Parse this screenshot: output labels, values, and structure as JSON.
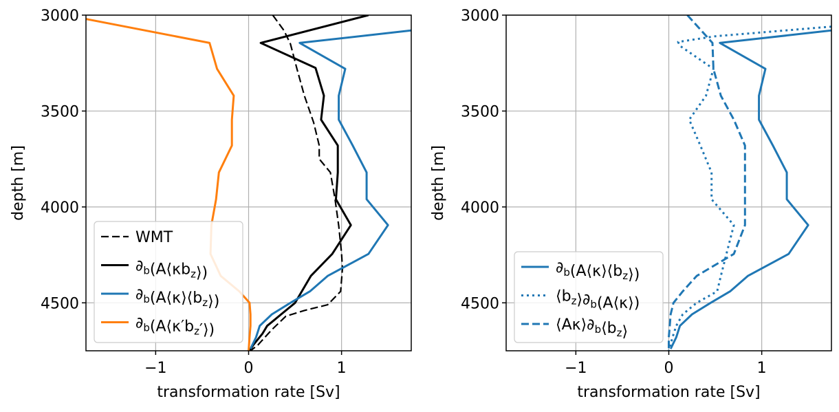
{
  "chart_data": [
    {
      "type": "line",
      "title": "",
      "xlabel": "transformation rate [Sv]",
      "ylabel": "depth [m]",
      "xlim": [
        -1.75,
        1.75
      ],
      "ylim": [
        4750,
        3000
      ],
      "y_inverted": true,
      "xticks": [
        -1,
        0,
        1
      ],
      "xtick_labels": [
        "−1",
        "0",
        "1"
      ],
      "yticks": [
        3000,
        3500,
        4000,
        4500
      ],
      "ytick_labels": [
        "3000",
        "3500",
        "4000",
        "4500"
      ],
      "grid": true,
      "legend_position": "lower-left",
      "series": [
        {
          "name": "WMT",
          "color": "#000000",
          "dash": "dashed",
          "points": [
            [
              0.26,
              3000
            ],
            [
              0.38,
              3080
            ],
            [
              0.45,
              3150
            ],
            [
              0.52,
              3280
            ],
            [
              0.6,
              3420
            ],
            [
              0.7,
              3560
            ],
            [
              0.76,
              3680
            ],
            [
              0.76,
              3750
            ],
            [
              0.88,
              3820
            ],
            [
              0.93,
              3960
            ],
            [
              0.97,
              4100
            ],
            [
              1.0,
              4240
            ],
            [
              1.01,
              4320
            ],
            [
              0.99,
              4440
            ],
            [
              0.85,
              4510
            ],
            [
              0.6,
              4540
            ],
            [
              0.4,
              4570
            ],
            [
              0.25,
              4640
            ],
            [
              0.1,
              4720
            ],
            [
              0.02,
              4750
            ]
          ]
        },
        {
          "name": "∂b(A⟨κbz⟩)",
          "color": "#000000",
          "dash": "solid",
          "points": [
            [
              1.29,
              3000
            ],
            [
              0.13,
              3145
            ],
            [
              0.72,
              3275
            ],
            [
              0.81,
              3420
            ],
            [
              0.78,
              3545
            ],
            [
              0.96,
              3680
            ],
            [
              0.96,
              3820
            ],
            [
              0.94,
              3960
            ],
            [
              1.1,
              4095
            ],
            [
              0.9,
              4245
            ],
            [
              0.67,
              4360
            ],
            [
              0.5,
              4500
            ],
            [
              0.35,
              4560
            ],
            [
              0.25,
              4600
            ],
            [
              0.2,
              4620
            ],
            [
              0.15,
              4660
            ],
            [
              0.05,
              4720
            ],
            [
              0.01,
              4750
            ]
          ]
        },
        {
          "name": "∂b(A⟨κ⟩⟨bz⟩)",
          "color": "#1f77b4",
          "dash": "solid",
          "points": [
            [
              1.75,
              3080
            ],
            [
              0.55,
              3145
            ],
            [
              1.04,
              3280
            ],
            [
              0.97,
              3420
            ],
            [
              0.97,
              3545
            ],
            [
              1.12,
              3680
            ],
            [
              1.27,
              3820
            ],
            [
              1.27,
              3960
            ],
            [
              1.5,
              4095
            ],
            [
              1.29,
              4245
            ],
            [
              0.85,
              4360
            ],
            [
              0.66,
              4440
            ],
            [
              0.45,
              4500
            ],
            [
              0.25,
              4560
            ],
            [
              0.12,
              4620
            ],
            [
              0.08,
              4680
            ],
            [
              0.02,
              4740
            ]
          ]
        },
        {
          "name": "∂b(A⟨κ′bz′⟩)",
          "color": "#ff7f0e",
          "dash": "solid",
          "points": [
            [
              -1.75,
              3020
            ],
            [
              -0.42,
              3145
            ],
            [
              -0.34,
              3280
            ],
            [
              -0.16,
              3420
            ],
            [
              -0.18,
              3545
            ],
            [
              -0.18,
              3680
            ],
            [
              -0.32,
              3820
            ],
            [
              -0.35,
              3960
            ],
            [
              -0.4,
              4095
            ],
            [
              -0.41,
              4245
            ],
            [
              -0.3,
              4360
            ],
            [
              -0.1,
              4440
            ],
            [
              0.01,
              4500
            ],
            [
              0.02,
              4560
            ],
            [
              0.02,
              4620
            ],
            [
              0.01,
              4680
            ],
            [
              0.0,
              4750
            ]
          ]
        }
      ],
      "legend": [
        {
          "color": "#000000",
          "dash": "dashed",
          "parts": [
            {
              "t": "WMT"
            }
          ]
        },
        {
          "color": "#000000",
          "dash": "solid",
          "parts": [
            {
              "t": "∂"
            },
            {
              "t": "b",
              "sub": true
            },
            {
              "t": "(A⟨κb"
            },
            {
              "t": "z",
              "sub": true
            },
            {
              "t": "⟩)"
            }
          ]
        },
        {
          "color": "#1f77b4",
          "dash": "solid",
          "parts": [
            {
              "t": "∂"
            },
            {
              "t": "b",
              "sub": true
            },
            {
              "t": "(A⟨κ⟩⟨b"
            },
            {
              "t": "z",
              "sub": true
            },
            {
              "t": "⟩)"
            }
          ]
        },
        {
          "color": "#ff7f0e",
          "dash": "solid",
          "parts": [
            {
              "t": "∂"
            },
            {
              "t": "b",
              "sub": true
            },
            {
              "t": "(A⟨κ′b"
            },
            {
              "t": "z",
              "sub": true
            },
            {
              "t": "′⟩)"
            }
          ]
        }
      ]
    },
    {
      "type": "line",
      "title": "",
      "xlabel": "transformation rate [Sv]",
      "ylabel": "depth [m]",
      "xlim": [
        -1.75,
        1.75
      ],
      "ylim": [
        4750,
        3000
      ],
      "y_inverted": true,
      "xticks": [
        -1,
        0,
        1
      ],
      "xtick_labels": [
        "−1",
        "0",
        "1"
      ],
      "yticks": [
        3000,
        3500,
        4000,
        4500
      ],
      "ytick_labels": [
        "3000",
        "3500",
        "4000",
        "4500"
      ],
      "grid": true,
      "legend_position": "lower-left",
      "series": [
        {
          "name": "∂b(A⟨κ⟩⟨bz⟩)",
          "color": "#1f77b4",
          "dash": "solid",
          "points": [
            [
              1.75,
              3080
            ],
            [
              0.55,
              3145
            ],
            [
              1.04,
              3280
            ],
            [
              0.97,
              3420
            ],
            [
              0.97,
              3545
            ],
            [
              1.12,
              3680
            ],
            [
              1.27,
              3820
            ],
            [
              1.27,
              3960
            ],
            [
              1.5,
              4095
            ],
            [
              1.29,
              4245
            ],
            [
              0.85,
              4360
            ],
            [
              0.66,
              4440
            ],
            [
              0.45,
              4500
            ],
            [
              0.25,
              4560
            ],
            [
              0.12,
              4620
            ],
            [
              0.08,
              4680
            ],
            [
              0.02,
              4740
            ]
          ]
        },
        {
          "name": "⟨bz⟩∂b(A⟨κ⟩)",
          "color": "#1f77b4",
          "dash": "dotted",
          "points": [
            [
              1.75,
              3060
            ],
            [
              0.5,
              3110
            ],
            [
              0.1,
              3140
            ],
            [
              0.12,
              3160
            ],
            [
              0.48,
              3280
            ],
            [
              0.4,
              3420
            ],
            [
              0.22,
              3545
            ],
            [
              0.34,
              3680
            ],
            [
              0.46,
              3820
            ],
            [
              0.46,
              3960
            ],
            [
              0.7,
              4095
            ],
            [
              0.62,
              4245
            ],
            [
              0.56,
              4360
            ],
            [
              0.52,
              4440
            ],
            [
              0.3,
              4500
            ],
            [
              0.15,
              4560
            ],
            [
              0.08,
              4620
            ],
            [
              0.04,
              4680
            ],
            [
              0.0,
              4750
            ]
          ]
        },
        {
          "name": "⟨Aκ⟩∂b⟨bz⟩",
          "color": "#1f77b4",
          "dash": "dashed",
          "points": [
            [
              0.2,
              3000
            ],
            [
              0.47,
              3145
            ],
            [
              0.48,
              3280
            ],
            [
              0.56,
              3420
            ],
            [
              0.7,
              3545
            ],
            [
              0.82,
              3680
            ],
            [
              0.82,
              3820
            ],
            [
              0.82,
              3960
            ],
            [
              0.82,
              4095
            ],
            [
              0.7,
              4245
            ],
            [
              0.3,
              4360
            ],
            [
              0.15,
              4440
            ],
            [
              0.05,
              4500
            ],
            [
              0.02,
              4560
            ],
            [
              0.01,
              4620
            ],
            [
              0.0,
              4680
            ],
            [
              0.0,
              4750
            ]
          ]
        }
      ],
      "legend": [
        {
          "color": "#1f77b4",
          "dash": "solid",
          "parts": [
            {
              "t": "∂"
            },
            {
              "t": "b",
              "sub": true
            },
            {
              "t": "(A⟨κ⟩⟨b"
            },
            {
              "t": "z",
              "sub": true
            },
            {
              "t": "⟩)"
            }
          ]
        },
        {
          "color": "#1f77b4",
          "dash": "dotted",
          "parts": [
            {
              "t": "⟨b"
            },
            {
              "t": "z",
              "sub": true
            },
            {
              "t": "⟩∂"
            },
            {
              "t": "b",
              "sub": true
            },
            {
              "t": "(A⟨κ⟩)"
            }
          ]
        },
        {
          "color": "#1f77b4",
          "dash": "dashed",
          "parts": [
            {
              "t": "⟨Aκ⟩∂"
            },
            {
              "t": "b",
              "sub": true
            },
            {
              "t": "⟨b"
            },
            {
              "t": "z",
              "sub": true
            },
            {
              "t": "⟩"
            }
          ]
        }
      ]
    }
  ]
}
